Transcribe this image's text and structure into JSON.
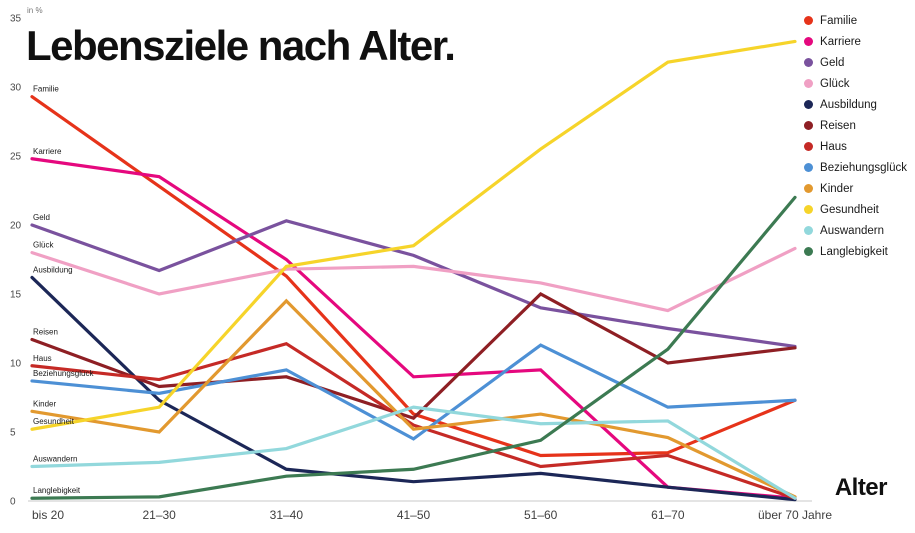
{
  "title": "Lebensziele nach Alter.",
  "y_axis": {
    "unit_label": "in %",
    "ticks": [
      0,
      5,
      10,
      15,
      20,
      25,
      30,
      35
    ],
    "max": 35
  },
  "x_axis": {
    "label": "Alter",
    "categories": [
      "bis 20",
      "21–30",
      "31–40",
      "41–50",
      "51–60",
      "61–70",
      "über 70 Jahre"
    ]
  },
  "chart_data": {
    "type": "line",
    "title": "Lebensziele nach Alter.",
    "xlabel": "Alter",
    "ylabel": "in %",
    "ylim": [
      0,
      35
    ],
    "grid": false,
    "legend_position": "top-right",
    "categories": [
      "bis 20",
      "21–30",
      "31–40",
      "41–50",
      "51–60",
      "61–70",
      "über 70 Jahre"
    ],
    "series": [
      {
        "name": "Familie",
        "color": "#e6331a",
        "values": [
          29.3,
          22.8,
          16.3,
          6.3,
          3.3,
          3.5,
          7.3
        ]
      },
      {
        "name": "Karriere",
        "color": "#e5087e",
        "values": [
          24.8,
          23.5,
          17.5,
          9.0,
          9.5,
          1.0,
          0.2
        ]
      },
      {
        "name": "Geld",
        "color": "#7a529e",
        "values": [
          20.0,
          16.7,
          20.3,
          17.8,
          14.0,
          12.5,
          11.2
        ]
      },
      {
        "name": "Glück",
        "color": "#f0a0c4",
        "values": [
          18.0,
          15.0,
          16.8,
          17.0,
          15.8,
          13.8,
          18.3
        ]
      },
      {
        "name": "Ausbildung",
        "color": "#1c2757",
        "values": [
          16.2,
          7.3,
          2.3,
          1.4,
          2.0,
          1.0,
          0.1
        ]
      },
      {
        "name": "Reisen",
        "color": "#8e1f24",
        "values": [
          11.7,
          8.3,
          9.0,
          6.0,
          15.0,
          10.0,
          11.1
        ]
      },
      {
        "name": "Haus",
        "color": "#c52a26",
        "values": [
          9.8,
          8.8,
          11.4,
          5.5,
          2.5,
          3.3,
          0.2
        ]
      },
      {
        "name": "Beziehungsglück",
        "color": "#4d90d5",
        "values": [
          8.7,
          7.8,
          9.5,
          4.5,
          11.3,
          6.8,
          7.3
        ]
      },
      {
        "name": "Kinder",
        "color": "#e2992f",
        "values": [
          6.5,
          5.0,
          14.5,
          5.2,
          6.3,
          4.6,
          0.3
        ]
      },
      {
        "name": "Gesundheit",
        "color": "#f6d42a",
        "values": [
          5.2,
          6.8,
          17.0,
          18.5,
          25.5,
          31.8,
          33.3
        ]
      },
      {
        "name": "Auswandern",
        "color": "#92d8dc",
        "values": [
          2.5,
          2.8,
          3.8,
          6.8,
          5.6,
          5.8,
          0.2
        ]
      },
      {
        "name": "Langlebigkeit",
        "color": "#3c7a52",
        "values": [
          0.2,
          0.3,
          1.8,
          2.3,
          4.4,
          11.0,
          22.0
        ]
      }
    ]
  }
}
